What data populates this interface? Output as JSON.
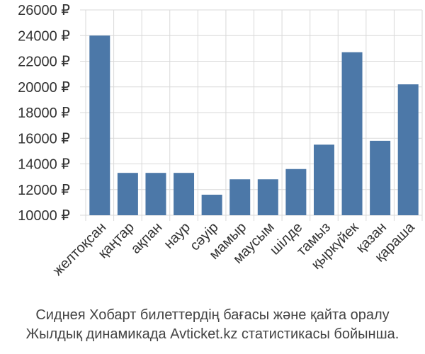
{
  "caption": {
    "line1": "Сиднея Хобарт билеттердің бағасы және қайта оралу",
    "line2": "Жылдық динамикада Avticket.kz статистикасы бойынша."
  },
  "colors": {
    "bar": "#4c78a8",
    "grid": "#d9d9d9",
    "text": "#333333"
  },
  "chart_data": {
    "type": "bar",
    "title": "",
    "xlabel": "",
    "ylabel": "",
    "ylim": [
      10000,
      26000
    ],
    "grid": true,
    "y_ticks": [
      {
        "value": 10000,
        "label": "10000 ₽"
      },
      {
        "value": 12000,
        "label": "12000 ₽"
      },
      {
        "value": 14000,
        "label": "14000 ₽"
      },
      {
        "value": 16000,
        "label": "16000 ₽"
      },
      {
        "value": 18000,
        "label": "18000 ₽"
      },
      {
        "value": 20000,
        "label": "20000 ₽"
      },
      {
        "value": 22000,
        "label": "22000 ₽"
      },
      {
        "value": 24000,
        "label": "24000 ₽"
      },
      {
        "value": 26000,
        "label": "26000 ₽"
      }
    ],
    "categories": [
      "желтоқсан",
      "қаңтар",
      "ақпан",
      "наур",
      "сәуір",
      "мамыр",
      "маусым",
      "шілде",
      "тамыз",
      "қыркүйек",
      "қазан",
      "қараша"
    ],
    "values": [
      24000,
      13300,
      13300,
      13300,
      11600,
      12800,
      12800,
      13600,
      15500,
      22700,
      15800,
      20200
    ]
  }
}
